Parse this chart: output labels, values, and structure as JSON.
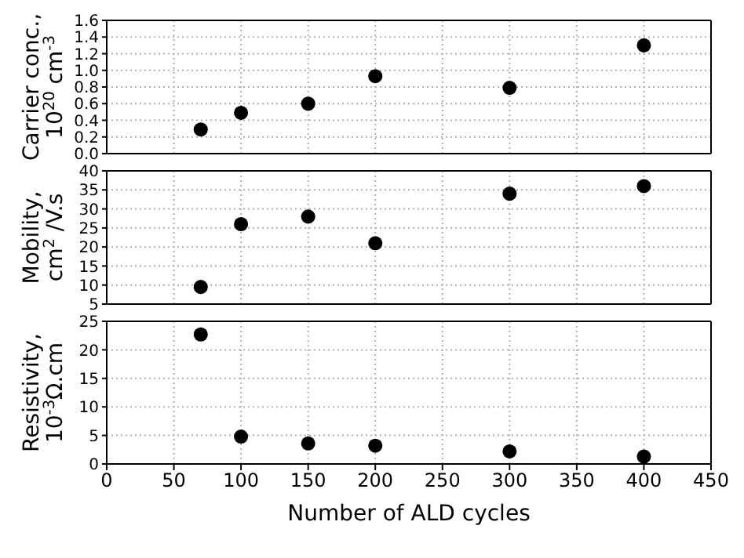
{
  "chart_data": [
    {
      "type": "scatter",
      "ylabel": "Carrier conc.,\n10$^{20}$ cm$^{-3}$",
      "x": [
        70,
        100,
        150,
        200,
        300,
        400
      ],
      "series": [
        {
          "color": "#000000",
          "values": [
            0.29,
            0.49,
            0.6,
            0.93,
            0.79,
            1.3
          ]
        }
      ],
      "xlim": [
        0,
        450
      ],
      "xticks": [
        0,
        50,
        100,
        150,
        200,
        250,
        300,
        350,
        400,
        450
      ],
      "ylim": [
        0,
        1.6
      ],
      "yticks": [
        {
          "value": 0,
          "label": "0.0"
        },
        0.2,
        0.4,
        0.6,
        0.8,
        {
          "value": 1,
          "label": "1.0"
        },
        1.2,
        1.4,
        1.6
      ],
      "grid": true,
      "marker": "circle",
      "tick_labels": "y"
    },
    {
      "type": "scatter",
      "ylabel": "Mobility,\ncm$^{2}$ /V.s",
      "x": [
        70,
        100,
        150,
        200,
        300,
        400
      ],
      "series": [
        {
          "color": "#000000",
          "values": [
            9.5,
            26,
            28,
            21,
            34,
            36
          ]
        }
      ],
      "xlim": [
        0,
        450
      ],
      "xticks": [
        0,
        50,
        100,
        150,
        200,
        250,
        300,
        350,
        400,
        450
      ],
      "ylim": [
        5,
        40
      ],
      "yticks": [
        5,
        10,
        15,
        20,
        25,
        30,
        35,
        40
      ],
      "grid": true,
      "marker": "circle",
      "tick_labels": "y"
    },
    {
      "type": "scatter",
      "ylabel": "Resistivity,\n10$^{-3}$Ω.cm",
      "xlabel": "Number of ALD cycles",
      "x": [
        70,
        100,
        150,
        200,
        300,
        400
      ],
      "series": [
        {
          "color": "#000000",
          "values": [
            22.7,
            4.8,
            3.6,
            3.2,
            2.2,
            1.3
          ]
        }
      ],
      "xlim": [
        0,
        450
      ],
      "xticks": [
        0,
        50,
        100,
        150,
        200,
        250,
        300,
        350,
        400,
        450
      ],
      "ylim": [
        0,
        25
      ],
      "yticks": [
        0,
        5,
        10,
        15,
        20,
        25
      ],
      "grid": true,
      "marker": "circle"
    }
  ]
}
